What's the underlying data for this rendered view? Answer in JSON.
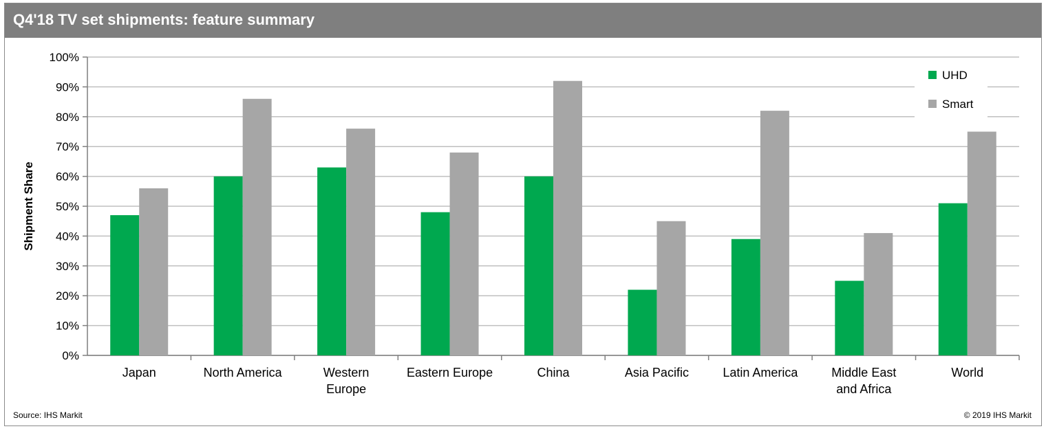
{
  "header": {
    "title": "Q4'18 TV set shipments: feature summary"
  },
  "footer": {
    "source": "Source: IHS Markit",
    "copyright": "© 2019 IHS Markit"
  },
  "chart_data": {
    "type": "bar",
    "title": "Q4'18 TV set shipments: feature summary",
    "xlabel": "",
    "ylabel": "Shipment Share",
    "ylim": [
      0,
      100
    ],
    "yticks": [
      "0%",
      "10%",
      "20%",
      "30%",
      "40%",
      "50%",
      "60%",
      "70%",
      "80%",
      "90%",
      "100%"
    ],
    "grid": true,
    "legend_position": "top-right",
    "categories": [
      [
        "Japan"
      ],
      [
        "North America"
      ],
      [
        "Western",
        "Europe"
      ],
      [
        "Eastern Europe"
      ],
      [
        "China"
      ],
      [
        "Asia Pacific"
      ],
      [
        "Latin America"
      ],
      [
        "Middle East",
        "and Africa"
      ],
      [
        "World"
      ]
    ],
    "series": [
      {
        "name": "UHD",
        "color": "#00a84f",
        "values": [
          47,
          60,
          63,
          48,
          60,
          22,
          39,
          25,
          51
        ]
      },
      {
        "name": "Smart",
        "color": "#a6a6a6",
        "values": [
          56,
          86,
          76,
          68,
          92,
          45,
          82,
          41,
          75
        ]
      }
    ]
  }
}
